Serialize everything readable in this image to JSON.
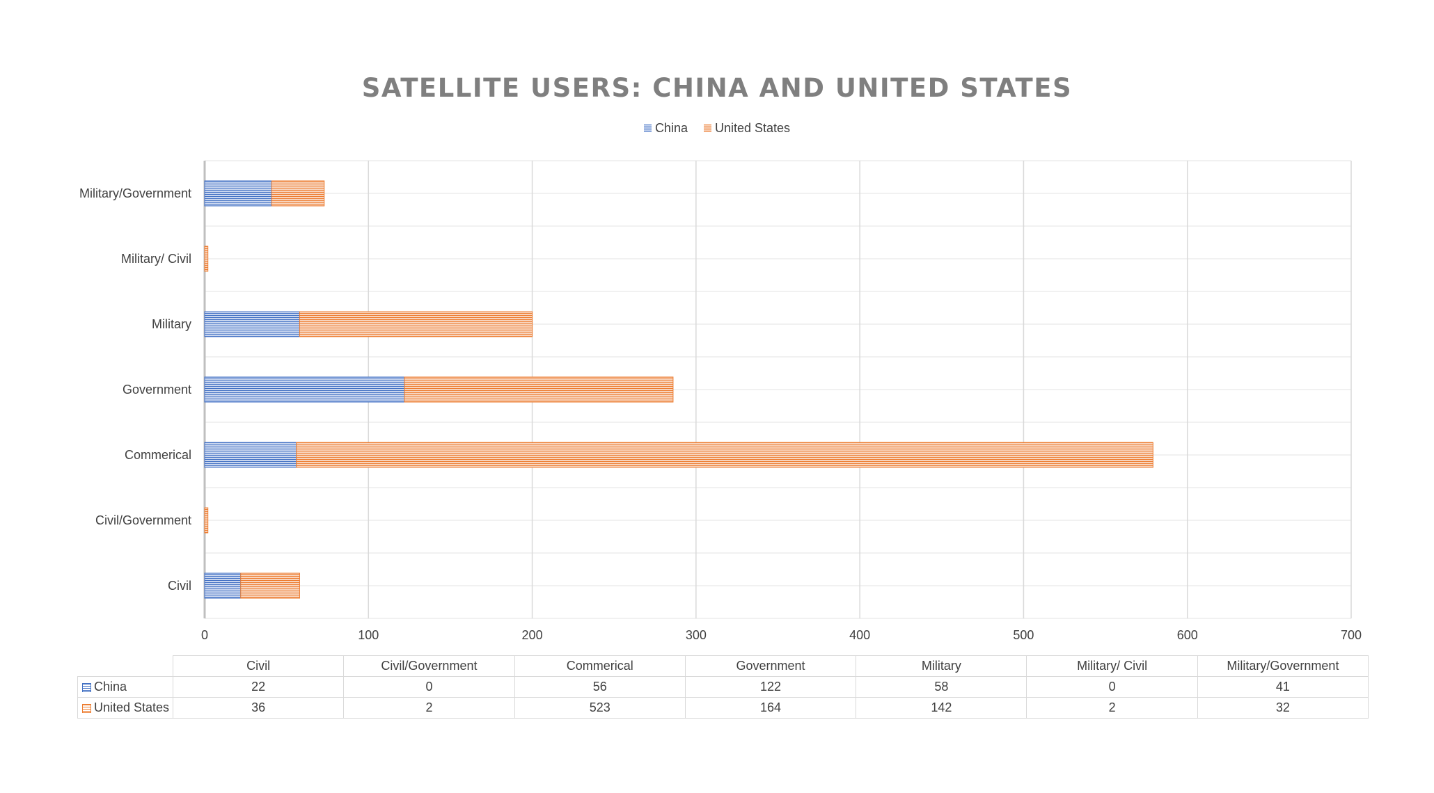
{
  "chart_data": {
    "type": "bar",
    "orientation": "horizontal",
    "stacked": true,
    "title": "SATELLITE USERS: CHINA AND UNITED STATES",
    "categories": [
      "Civil",
      "Civil/Government",
      "Commerical",
      "Government",
      "Military",
      "Military/ Civil",
      "Military/Government"
    ],
    "series": [
      {
        "name": "China",
        "values": [
          22,
          0,
          56,
          122,
          58,
          0,
          41
        ],
        "color": "#4472c4"
      },
      {
        "name": "United States",
        "values": [
          36,
          2,
          523,
          164,
          142,
          2,
          32
        ],
        "color": "#ed7d31"
      }
    ],
    "xlim": [
      0,
      700
    ],
    "xticks": [
      0,
      100,
      200,
      300,
      400,
      500,
      600,
      700
    ],
    "grid": true,
    "legend_position": "top",
    "data_table": true
  }
}
